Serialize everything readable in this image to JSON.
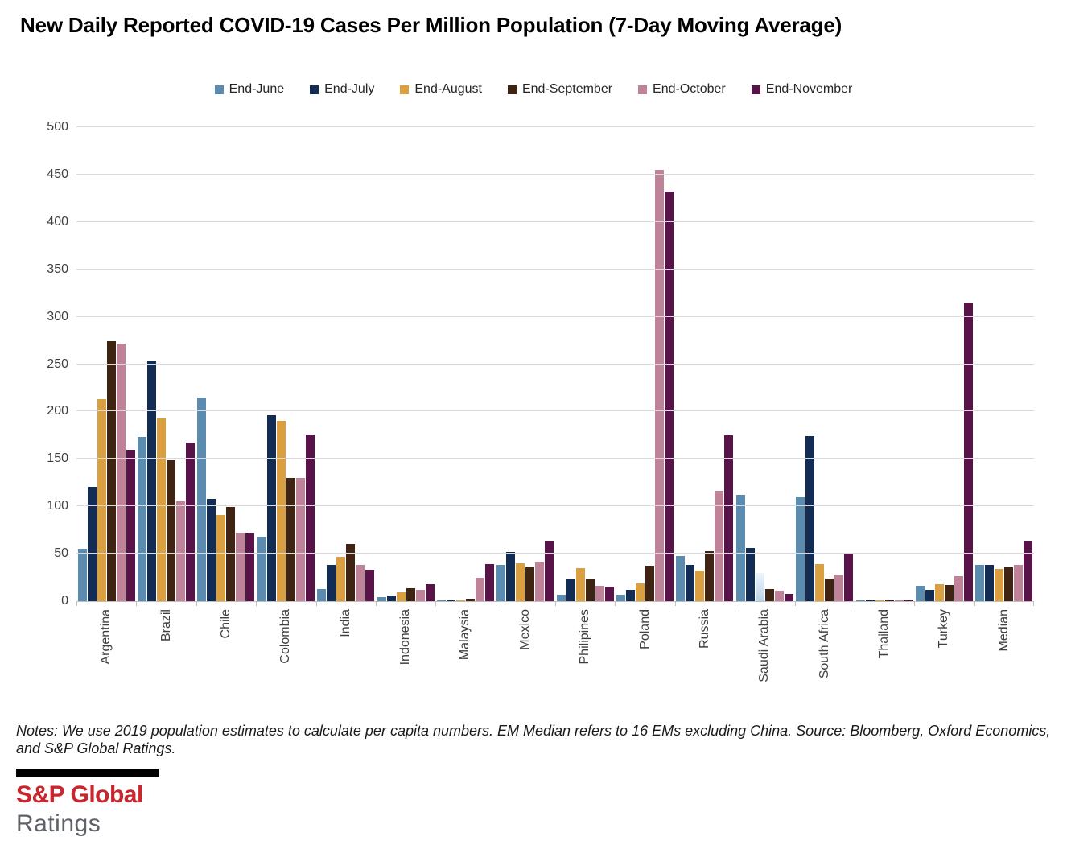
{
  "title": "New Daily Reported COVID-19 Cases Per Million Population (7-Day Moving Average)",
  "chart_data": {
    "type": "bar",
    "title": "New Daily Reported COVID-19 Cases Per Million Population (7-Day Moving Average)",
    "categories": [
      "Argentina",
      "Brazil",
      "Chile",
      "Colombia",
      "India",
      "Indonesia",
      "Malaysia",
      "Mexico",
      "Philipines",
      "Poland",
      "Russia",
      "Saudi Arabia",
      "South Africa",
      "Thailand",
      "Turkey",
      "Median"
    ],
    "series": [
      {
        "name": "End-June",
        "color": "#5B8CAF",
        "values": [
          55,
          173,
          215,
          68,
          13,
          4,
          1,
          38,
          7,
          7,
          48,
          112,
          110,
          1,
          16,
          38
        ]
      },
      {
        "name": "End-July",
        "color": "#122C54",
        "values": [
          121,
          254,
          108,
          196,
          38,
          6,
          1,
          52,
          23,
          12,
          38,
          56,
          174,
          1,
          12,
          38
        ]
      },
      {
        "name": "End-August",
        "color": "#D99F40",
        "values": [
          213,
          193,
          91,
          190,
          47,
          9,
          1,
          40,
          35,
          19,
          32,
          30,
          39,
          1,
          18,
          34
        ]
      },
      {
        "name": "End-September",
        "color": "#3F2414",
        "values": [
          274,
          149,
          99,
          130,
          60,
          14,
          3,
          36,
          23,
          37,
          53,
          13,
          24,
          1,
          17,
          36
        ]
      },
      {
        "name": "End-October",
        "color": "#BE8398",
        "values": [
          272,
          105,
          72,
          130,
          38,
          12,
          25,
          42,
          16,
          455,
          116,
          11,
          28,
          1,
          26,
          38
        ]
      },
      {
        "name": "End-November",
        "color": "#581349",
        "values": [
          160,
          167,
          72,
          176,
          33,
          18,
          39,
          64,
          15,
          432,
          175,
          8,
          50,
          1,
          315,
          64
        ]
      }
    ],
    "ylim": [
      0,
      500
    ],
    "ytick_step": 50,
    "grid": true,
    "legend_position": "top",
    "xlabel": "",
    "ylabel": "",
    "special_bars": [
      {
        "category": "Saudi Arabia",
        "series": "End-August",
        "style": "pale-blue-gradient",
        "gradient_bottom": "#B9D3E8",
        "gradient_top": "#EEF5FB"
      }
    ]
  },
  "notes": "Notes: We use 2019 population estimates to calculate per capita numbers. EM Median refers to 16 EMs excluding China. Source: Bloomberg, Oxford Economics, and S&P Global Ratings.",
  "branding": {
    "company": "S&P Global",
    "division": "Ratings",
    "accent_color": "#C9262E"
  }
}
